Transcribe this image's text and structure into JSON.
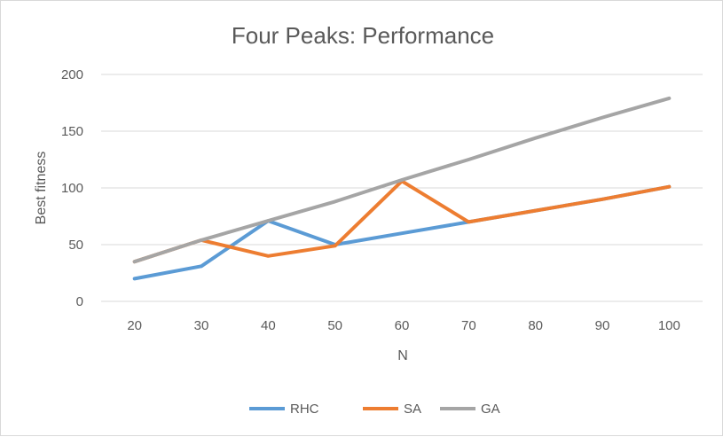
{
  "chart_data": {
    "type": "line",
    "title": "Four Peaks: Performance",
    "xlabel": "N",
    "ylabel": "Best fitness",
    "categories": [
      "20",
      "30",
      "40",
      "50",
      "60",
      "70",
      "80",
      "90",
      "100"
    ],
    "ylim": [
      0,
      200
    ],
    "yticks": [
      0,
      50,
      100,
      150,
      200
    ],
    "grid": true,
    "legend": "bottom",
    "series": [
      {
        "name": "RHC",
        "color": "#5b9bd5",
        "values": [
          20,
          31,
          71,
          50,
          60,
          70,
          80,
          90,
          101
        ]
      },
      {
        "name": "SA",
        "color": "#ed7d31",
        "values": [
          35,
          54,
          40,
          49,
          106,
          70,
          80,
          90,
          101
        ]
      },
      {
        "name": "GA",
        "color": "#a5a5a5",
        "values": [
          35,
          54,
          71,
          88,
          107,
          125,
          144,
          162,
          179
        ]
      }
    ]
  }
}
